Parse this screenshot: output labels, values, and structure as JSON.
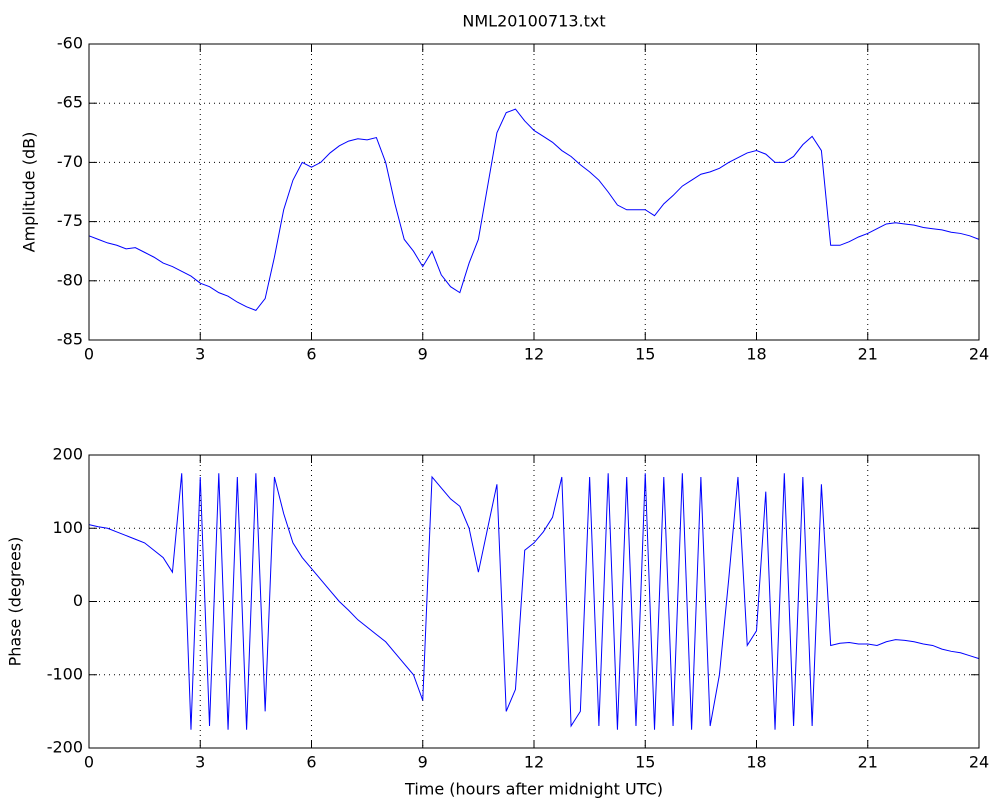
{
  "chart_data": [
    {
      "type": "line",
      "title": "NML20100713.txt",
      "y_label": "Amplitude (dB)",
      "color": "#0000ff",
      "grid": true,
      "xlim": [
        0,
        24
      ],
      "xticks": [
        0,
        3,
        6,
        9,
        12,
        15,
        18,
        21,
        24
      ],
      "ylim": [
        -85,
        -60
      ],
      "yticks": [
        -85,
        -80,
        -75,
        -70,
        -65,
        -60
      ],
      "x": [
        0,
        0.25,
        0.5,
        0.75,
        1,
        1.25,
        1.5,
        1.75,
        2,
        2.25,
        2.5,
        2.75,
        3,
        3.25,
        3.5,
        3.75,
        4,
        4.25,
        4.5,
        4.75,
        5,
        5.25,
        5.5,
        5.75,
        6,
        6.25,
        6.5,
        6.75,
        7,
        7.25,
        7.5,
        7.75,
        8,
        8.25,
        8.5,
        8.75,
        9,
        9.25,
        9.5,
        9.75,
        10,
        10.25,
        10.5,
        10.75,
        11,
        11.25,
        11.5,
        11.75,
        12,
        12.25,
        12.5,
        12.75,
        13,
        13.25,
        13.5,
        13.75,
        14,
        14.25,
        14.5,
        14.75,
        15,
        15.25,
        15.5,
        15.75,
        16,
        16.25,
        16.5,
        16.75,
        17,
        17.25,
        17.5,
        17.75,
        18,
        18.25,
        18.5,
        18.75,
        19,
        19.25,
        19.5,
        19.75,
        20,
        20.25,
        20.5,
        20.75,
        21,
        21.25,
        21.5,
        21.75,
        22,
        22.25,
        22.5,
        22.75,
        23,
        23.25,
        23.5,
        23.75,
        24
      ],
      "values": [
        -76.2,
        -76.5,
        -76.8,
        -77,
        -77.3,
        -77.2,
        -77.6,
        -78,
        -78.5,
        -78.8,
        -79.2,
        -79.6,
        -80.2,
        -80.5,
        -81,
        -81.3,
        -81.8,
        -82.2,
        -82.5,
        -81.5,
        -78,
        -74,
        -71.5,
        -70,
        -70.4,
        -70,
        -69.2,
        -68.6,
        -68.2,
        -68,
        -68.1,
        -67.9,
        -70,
        -73.5,
        -76.5,
        -77.5,
        -78.8,
        -77.5,
        -79.5,
        -80.5,
        -81,
        -78.5,
        -76.5,
        -72,
        -67.5,
        -65.8,
        -65.5,
        -66.5,
        -67.3,
        -67.8,
        -68.3,
        -69,
        -69.5,
        -70.2,
        -70.8,
        -71.5,
        -72.5,
        -73.6,
        -74,
        -74,
        -74,
        -74.5,
        -73.5,
        -72.8,
        -72,
        -71.5,
        -71,
        -70.8,
        -70.5,
        -70,
        -69.6,
        -69.2,
        -69,
        -69.3,
        -70,
        -70,
        -69.5,
        -68.5,
        -67.8,
        -69,
        -77,
        -77,
        -76.7,
        -76.3,
        -76,
        -75.6,
        -75.2,
        -75.1,
        -75.2,
        -75.3,
        -75.5,
        -75.6,
        -75.7,
        -75.9,
        -76,
        -76.2,
        -76.5
      ]
    },
    {
      "type": "line",
      "x_label": "Time (hours after midnight UTC)",
      "y_label": "Phase (degrees)",
      "color": "#0000ff",
      "grid": true,
      "xlim": [
        0,
        24
      ],
      "xticks": [
        0,
        3,
        6,
        9,
        12,
        15,
        18,
        21,
        24
      ],
      "ylim": [
        -200,
        200
      ],
      "yticks": [
        -200,
        -100,
        0,
        100,
        200
      ],
      "x": [
        0,
        0.25,
        0.5,
        0.75,
        1,
        1.25,
        1.5,
        1.75,
        2,
        2.25,
        2.5,
        2.75,
        3,
        3.25,
        3.5,
        3.75,
        4,
        4.25,
        4.5,
        4.75,
        5,
        5.25,
        5.5,
        5.75,
        6,
        6.25,
        6.5,
        6.75,
        7,
        7.25,
        7.5,
        7.75,
        8,
        8.25,
        8.5,
        8.75,
        9,
        9.25,
        9.5,
        9.75,
        10,
        10.25,
        10.5,
        10.75,
        11,
        11.25,
        11.5,
        11.75,
        12,
        12.25,
        12.5,
        12.75,
        13,
        13.25,
        13.5,
        13.75,
        14,
        14.25,
        14.5,
        14.75,
        15,
        15.25,
        15.5,
        15.75,
        16,
        16.25,
        16.5,
        16.75,
        17,
        17.25,
        17.5,
        17.75,
        18,
        18.25,
        18.5,
        18.75,
        19,
        19.25,
        19.5,
        19.75,
        20,
        20.25,
        20.5,
        20.75,
        21,
        21.25,
        21.5,
        21.75,
        22,
        22.25,
        22.5,
        22.75,
        23,
        23.25,
        23.5,
        23.75,
        24
      ],
      "values": [
        105,
        102,
        100,
        95,
        90,
        85,
        80,
        70,
        60,
        40,
        175,
        -175,
        170,
        -170,
        175,
        -175,
        170,
        -175,
        175,
        -150,
        170,
        120,
        80,
        60,
        45,
        30,
        15,
        0,
        -12,
        -25,
        -35,
        -45,
        -55,
        -70,
        -85,
        -100,
        -135,
        170,
        155,
        140,
        130,
        100,
        40,
        100,
        160,
        -150,
        -120,
        70,
        80,
        95,
        115,
        170,
        -170,
        -150,
        170,
        -170,
        175,
        -175,
        170,
        -170,
        175,
        -175,
        170,
        -170,
        175,
        -175,
        170,
        -170,
        -100,
        30,
        170,
        -60,
        -40,
        150,
        -175,
        175,
        -170,
        170,
        -170,
        160,
        -60,
        -57,
        -56,
        -58,
        -58,
        -60,
        -55,
        -52,
        -53,
        -55,
        -58,
        -60,
        -65,
        -68,
        -70,
        -74,
        -78
      ]
    }
  ]
}
